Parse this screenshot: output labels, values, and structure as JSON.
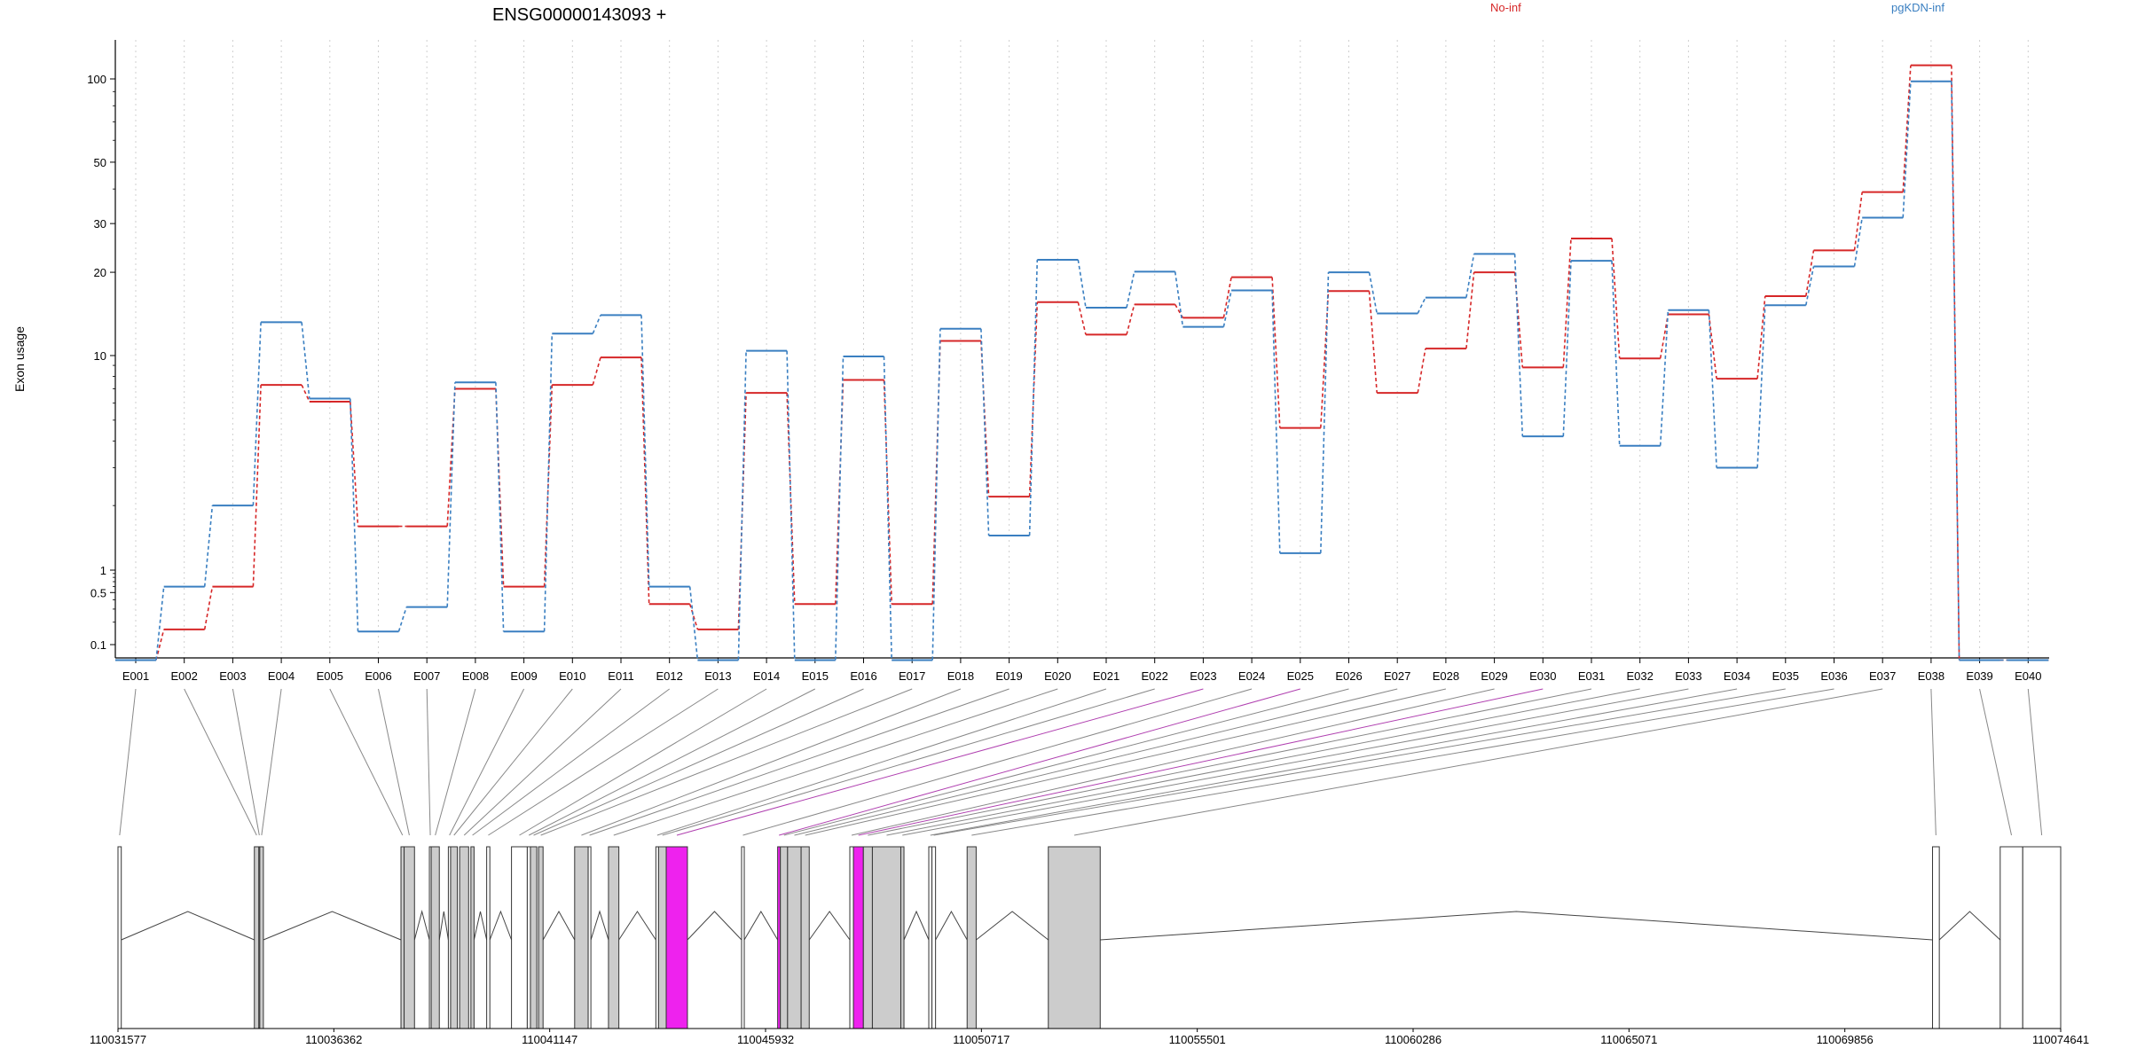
{
  "chart_data": {
    "type": "line",
    "title": "ENSG00000143093 +",
    "ylabel": "Exon usage",
    "y_scale": "log",
    "ylim": [
      0.07,
      140
    ],
    "y_ticks": [
      {
        "value": 0.1,
        "label": "0.1"
      },
      {
        "value": 0.5,
        "label": "0.5"
      },
      {
        "value": 1,
        "label": "1"
      },
      {
        "value": 10,
        "label": "10"
      },
      {
        "value": 20,
        "label": "20"
      },
      {
        "value": 30,
        "label": "30"
      },
      {
        "value": 50,
        "label": "50"
      },
      {
        "value": 100,
        "label": "100"
      }
    ],
    "grid": "vertical dotted lines at each exon",
    "legend_placement": "top-right",
    "colors": {
      "No-inf": "#d62728",
      "pgKDN-inf": "#3a7fc1",
      "highlight": "#ee22ee",
      "exon_fill": "#cccccc"
    },
    "categories": [
      "E001",
      "E002",
      "E003",
      "E004",
      "E005",
      "E006",
      "E007",
      "E008",
      "E009",
      "E010",
      "E011",
      "E012",
      "E013",
      "E014",
      "E015",
      "E016",
      "E017",
      "E018",
      "E019",
      "E020",
      "E021",
      "E022",
      "E023",
      "E024",
      "E025",
      "E026",
      "E027",
      "E028",
      "E029",
      "E030",
      "E031",
      "E032",
      "E033",
      "E034",
      "E035",
      "E036",
      "E037",
      "E038",
      "E039",
      "E040"
    ],
    "series": [
      {
        "name": "No-inf",
        "color": "#d62728",
        "values": [
          0.08,
          0.16,
          0.6,
          7.3,
          6.1,
          1.6,
          1.6,
          7.0,
          0.6,
          7.3,
          9.8,
          0.35,
          0.16,
          6.7,
          0.35,
          7.7,
          0.35,
          11.3,
          2.2,
          15.6,
          11.9,
          15.3,
          13.7,
          19.2,
          4.6,
          17.1,
          6.7,
          10.6,
          20.0,
          8.8,
          26.5,
          9.7,
          14.1,
          7.8,
          16.4,
          24.0,
          39.0,
          112.0,
          0.08,
          0.08
        ]
      },
      {
        "name": "pgKDN-inf",
        "color": "#3a7fc1",
        "values": [
          0.08,
          0.6,
          2.0,
          13.2,
          6.3,
          0.15,
          0.32,
          7.5,
          0.15,
          12.0,
          14.0,
          0.6,
          0.08,
          10.4,
          0.08,
          9.9,
          0.08,
          12.5,
          1.45,
          22.2,
          14.9,
          20.1,
          12.7,
          17.2,
          1.2,
          20.0,
          14.2,
          16.2,
          23.3,
          4.2,
          22.0,
          3.8,
          14.6,
          3.0,
          15.2,
          21.0,
          31.5,
          98.0,
          0.08,
          0.08
        ]
      }
    ],
    "gene_model": {
      "coordinate_labels": [
        "110031577",
        "110036362",
        "110041147",
        "110045932",
        "110050717",
        "110055501",
        "110060286",
        "110065071",
        "110069856",
        "110074641"
      ],
      "coordinate_range": [
        110031577,
        110074641
      ],
      "exons": [
        {
          "id": "E001",
          "start": 110031577,
          "end": 110031650,
          "shade": "white"
        },
        {
          "id": "E002",
          "start": 110034600,
          "end": 110034700,
          "shade": "grey"
        },
        {
          "id": "E003",
          "start": 110034700,
          "end": 110034720,
          "shade": "grey"
        },
        {
          "id": "E004",
          "start": 110034720,
          "end": 110034800,
          "shade": "grey"
        },
        {
          "id": "E005",
          "start": 110037850,
          "end": 110037920,
          "shade": "grey"
        },
        {
          "id": "E006",
          "start": 110037920,
          "end": 110038150,
          "shade": "grey"
        },
        {
          "id": "E007",
          "start": 110038480,
          "end": 110038520,
          "shade": "white"
        },
        {
          "id": "E008",
          "start": 110038520,
          "end": 110038700,
          "shade": "grey"
        },
        {
          "id": "E009",
          "start": 110038900,
          "end": 110038950,
          "shade": "white"
        },
        {
          "id": "E010",
          "start": 110038950,
          "end": 110039100,
          "shade": "grey"
        },
        {
          "id": "E011",
          "start": 110039150,
          "end": 110039350,
          "shade": "grey"
        },
        {
          "id": "E012",
          "start": 110039400,
          "end": 110039470,
          "shade": "grey"
        },
        {
          "id": "E013",
          "start": 110039750,
          "end": 110039820,
          "shade": "white"
        },
        {
          "id": "E014",
          "start": 110040300,
          "end": 110040650,
          "shade": "white"
        },
        {
          "id": "E015",
          "start": 110040650,
          "end": 110040720,
          "shade": "white"
        },
        {
          "id": "E016",
          "start": 110040720,
          "end": 110040860,
          "shade": "grey"
        },
        {
          "id": "E017",
          "start": 110040900,
          "end": 110041000,
          "shade": "grey"
        },
        {
          "id": "E018",
          "start": 110041700,
          "end": 110042000,
          "shade": "grey"
        },
        {
          "id": "E019",
          "start": 110042000,
          "end": 110042060,
          "shade": "white"
        },
        {
          "id": "E020",
          "start": 110042450,
          "end": 110042680,
          "shade": "grey"
        },
        {
          "id": "E021",
          "start": 110043500,
          "end": 110043560,
          "shade": "white"
        },
        {
          "id": "E022",
          "start": 110043560,
          "end": 110043730,
          "shade": "grey"
        },
        {
          "id": "E023",
          "start": 110043730,
          "end": 110044200,
          "shade": "magenta"
        },
        {
          "id": "E024",
          "start": 110045400,
          "end": 110045460,
          "shade": "white"
        },
        {
          "id": "E025",
          "start": 110046200,
          "end": 110046260,
          "shade": "magenta"
        },
        {
          "id": "E026",
          "start": 110046260,
          "end": 110046420,
          "shade": "grey"
        },
        {
          "id": "E027",
          "start": 110046420,
          "end": 110046720,
          "shade": "grey"
        },
        {
          "id": "E028",
          "start": 110046720,
          "end": 110046900,
          "shade": "grey"
        },
        {
          "id": "E029",
          "start": 110047800,
          "end": 110047880,
          "shade": "white"
        },
        {
          "id": "E030",
          "start": 110047880,
          "end": 110048100,
          "shade": "magenta"
        },
        {
          "id": "E031",
          "start": 110048100,
          "end": 110048300,
          "shade": "grey"
        },
        {
          "id": "E032",
          "start": 110048300,
          "end": 110048930,
          "shade": "grey"
        },
        {
          "id": "E033",
          "start": 110048930,
          "end": 110049000,
          "shade": "grey"
        },
        {
          "id": "E034",
          "start": 110049550,
          "end": 110049620,
          "shade": "white"
        },
        {
          "id": "E035",
          "start": 110049620,
          "end": 110049700,
          "shade": "white"
        },
        {
          "id": "E036",
          "start": 110050400,
          "end": 110050600,
          "shade": "grey"
        },
        {
          "id": "E037",
          "start": 110052200,
          "end": 110053350,
          "shade": "grey"
        },
        {
          "id": "E038",
          "start": 110071800,
          "end": 110071950,
          "shade": "white"
        },
        {
          "id": "E039",
          "start": 110073300,
          "end": 110073800,
          "shade": "white"
        },
        {
          "id": "E040",
          "start": 110073800,
          "end": 110074641,
          "shade": "white"
        }
      ]
    }
  }
}
